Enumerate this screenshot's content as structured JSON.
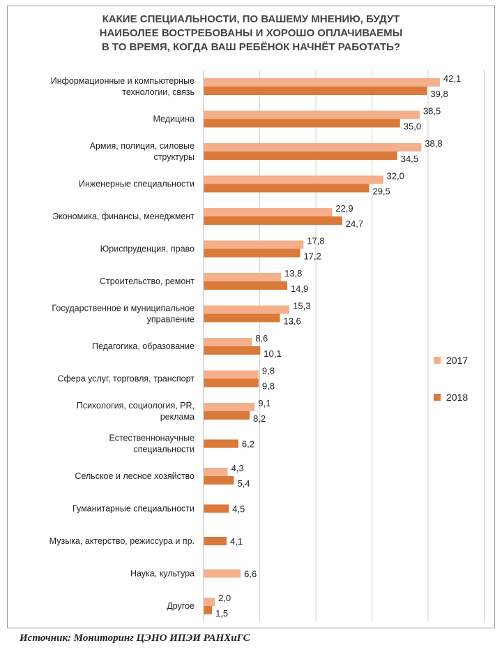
{
  "title_lines": [
    "КАКИЕ СПЕЦИАЛЬНОСТИ, ПО ВАШЕМУ МНЕНИЮ, БУДУТ",
    "НАИБОЛЕЕ ВОСТРЕБОВАНЫ И ХОРОШО ОПЛАЧИВАЕМЫ",
    "В ТО ВРЕМЯ, КОГДА ВАШ РЕБЁНОК НАЧНЁТ РАБОТАТЬ?"
  ],
  "source": "Источник: Мониторинг ЦЭНО ИПЭИ РАНХиГС",
  "colors": {
    "s2017": "#f4b08a",
    "s2018": "#d9793a",
    "grid": "#cccccc"
  },
  "chart_data": {
    "type": "bar",
    "orientation": "horizontal",
    "title": "КАКИЕ СПЕЦИАЛЬНОСТИ, ПО ВАШЕМУ МНЕНИЮ, БУДУТ НАИБОЛЕЕ ВОСТРЕБОВАНЫ И ХОРОШО ОПЛАЧИВАЕМЫ В ТО ВРЕМЯ, КОГДА ВАШ РЕБЁНОК НАЧНЁТ РАБОТАТЬ?",
    "categories": [
      [
        "Информационные и компьютерные",
        "технологии, связь"
      ],
      [
        "Медицина"
      ],
      [
        "Армия, полиция, силовые",
        "структуры"
      ],
      [
        "Инженерные специальности"
      ],
      [
        "Экономика, финансы, менеджмент"
      ],
      [
        "Юриспруденция, право"
      ],
      [
        "Строительство, ремонт"
      ],
      [
        "Государственное и муниципальное",
        "управление"
      ],
      [
        "Педагогика, образование"
      ],
      [
        "Сфера услуг, торговля, транспорт"
      ],
      [
        "Психология, социология, PR,",
        "реклама"
      ],
      [
        "Естественнонаучные",
        "специальности"
      ],
      [
        "Сельское и лесное хозяйство"
      ],
      [
        "Гуманитарные специальности"
      ],
      [
        "Музыка, актерство, режиссура и пр."
      ],
      [
        "Наука, культура"
      ],
      [
        "Другое"
      ]
    ],
    "series": [
      {
        "name": "2017",
        "values": [
          42.1,
          38.5,
          38.8,
          32.0,
          22.9,
          17.8,
          13.8,
          15.3,
          8.6,
          9.8,
          9.1,
          null,
          4.3,
          null,
          null,
          6.6,
          2.0
        ],
        "labels": [
          "42,1",
          "38,5",
          "38,8",
          "32,0",
          "22,9",
          "17,8",
          "13,8",
          "15,3",
          "8,6",
          "9,8",
          "9,1",
          null,
          "4,3",
          null,
          null,
          "6,6",
          "2,0"
        ]
      },
      {
        "name": "2018",
        "values": [
          39.8,
          35.0,
          34.5,
          29.5,
          24.7,
          17.2,
          14.9,
          13.6,
          10.1,
          9.8,
          8.2,
          6.2,
          5.4,
          4.5,
          4.1,
          null,
          1.5
        ],
        "labels": [
          "39,8",
          "35,0",
          "34,5",
          "29,5",
          "24,7",
          "17,2",
          "14,9",
          "13,6",
          "10,1",
          "9,8",
          "8,2",
          "6,2",
          "5,4",
          "4,5",
          "4,1",
          null,
          "1,5"
        ]
      }
    ],
    "xlim": [
      0,
      50
    ],
    "grid": true,
    "legend": "right"
  }
}
